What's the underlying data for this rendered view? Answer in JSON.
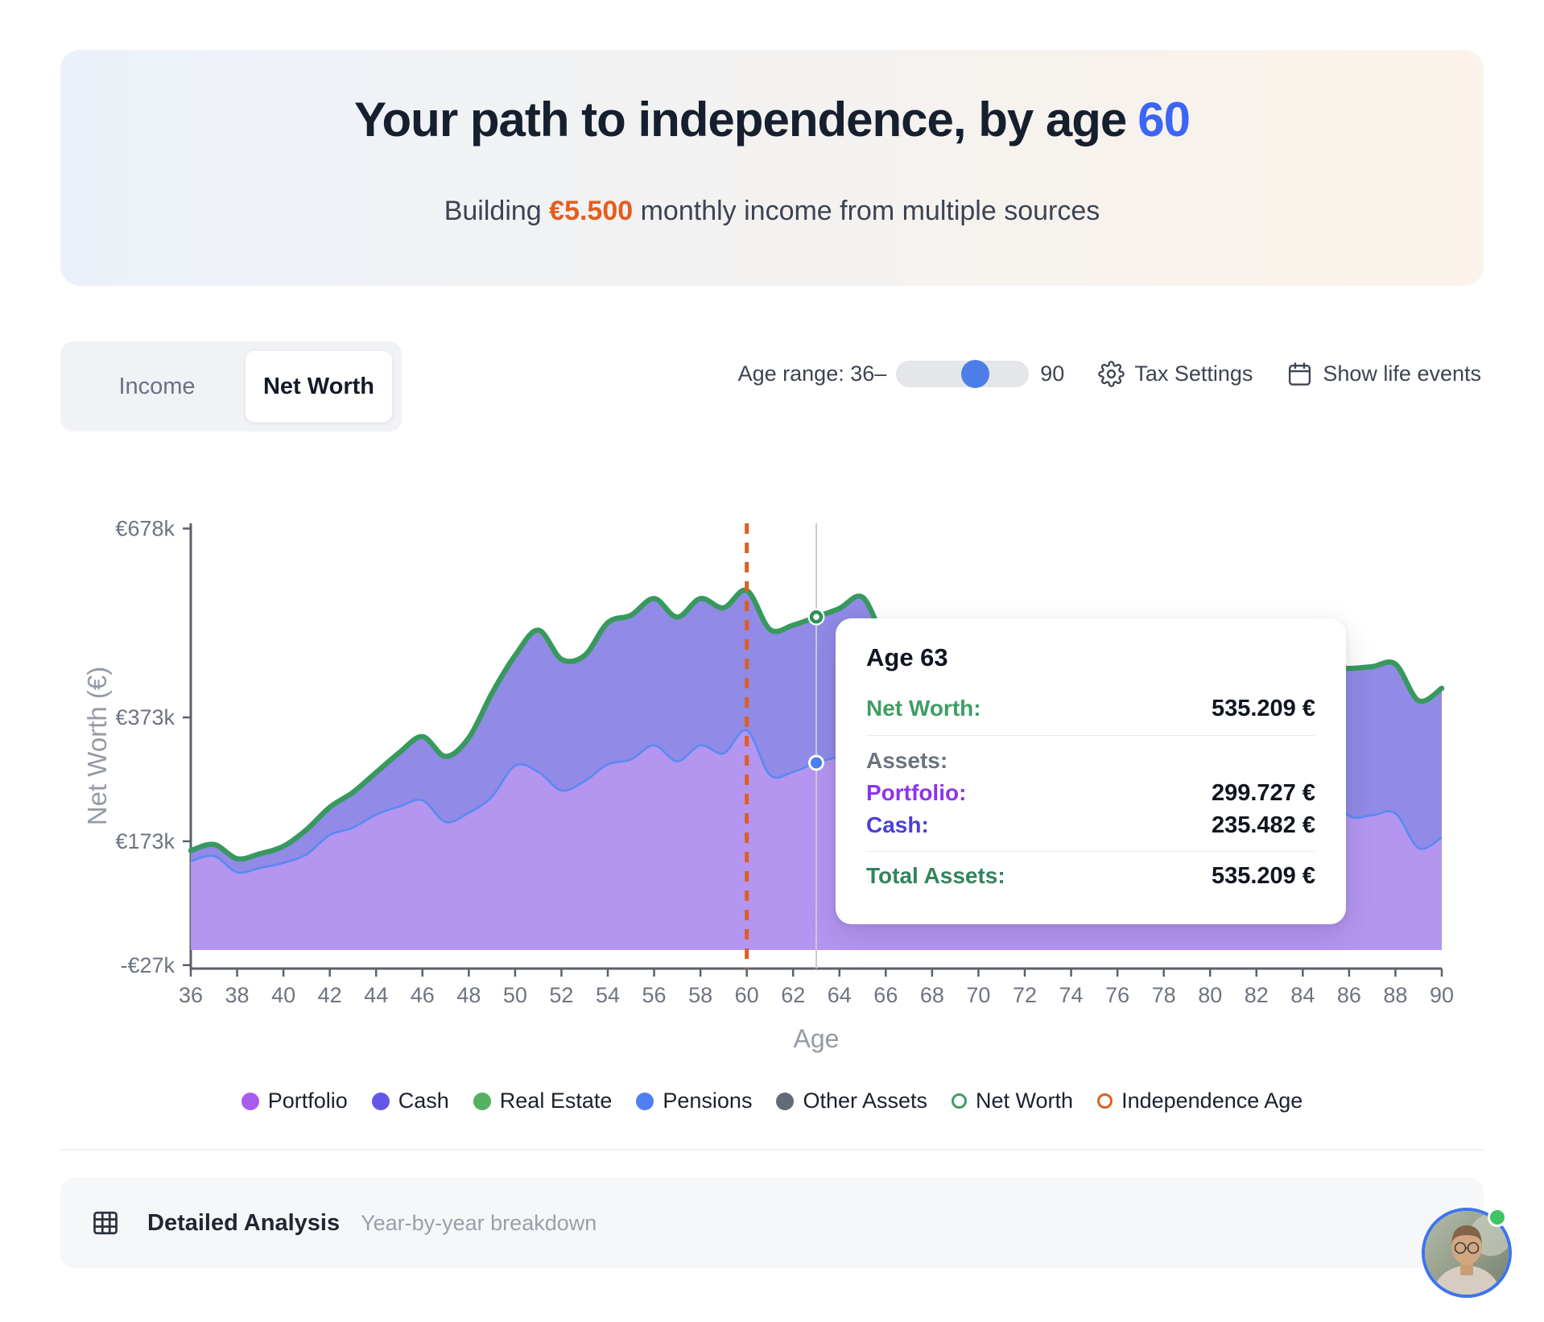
{
  "header": {
    "title_prefix": "Your path to independence, by age",
    "title_age": "60",
    "subtitle_prefix": "Building",
    "subtitle_amount": "€5.500",
    "subtitle_suffix": "monthly income from multiple sources"
  },
  "toolbar": {
    "tabs": [
      {
        "label": "Income",
        "active": false
      },
      {
        "label": "Net Worth",
        "active": true
      }
    ],
    "age_range_label": "Age range: 36–",
    "age_range_end": "90",
    "tax_settings_label": "Tax Settings",
    "life_events_label": "Show life events"
  },
  "chart_data": {
    "type": "area",
    "ylabel": "Net Worth (€)",
    "xlabel": "Age",
    "y_ticks": [
      {
        "label": "€678k",
        "value": 678
      },
      {
        "label": "€373k",
        "value": 373
      },
      {
        "label": "€173k",
        "value": 173
      },
      {
        "label": "-€27k",
        "value": -27
      }
    ],
    "x_range": [
      36,
      90
    ],
    "x_tick_step": 2,
    "ages": [
      36,
      37,
      38,
      39,
      40,
      41,
      42,
      43,
      44,
      45,
      46,
      47,
      48,
      49,
      50,
      51,
      52,
      53,
      54,
      55,
      56,
      57,
      58,
      59,
      60,
      61,
      62,
      63,
      64,
      65,
      66,
      67,
      68,
      69,
      70,
      71,
      72,
      73,
      74,
      75,
      76,
      77,
      78,
      79,
      80,
      81,
      82,
      83,
      84,
      85,
      86,
      87,
      88,
      89,
      90
    ],
    "series": [
      {
        "name": "Portfolio",
        "color": "#b495f0",
        "line_color": "#568af2",
        "values": [
          141,
          149,
          123,
          130,
          138,
          152,
          183,
          195,
          216,
          229,
          239,
          204,
          219,
          245,
          295,
          285,
          255,
          270,
          297,
          305,
          328,
          302,
          328,
          315,
          352,
          280,
          285,
          299.727,
          310,
          322,
          285,
          288,
          290,
          291,
          290,
          289,
          287,
          285,
          284,
          282,
          280,
          278,
          276,
          274,
          272,
          269,
          267,
          264,
          261,
          258,
          214,
          215,
          218,
          162,
          179
        ]
      },
      {
        "name": "Cash",
        "color": "#918ae6",
        "values": [
          17,
          19,
          22,
          23,
          27,
          40,
          45,
          57,
          68,
          87,
          103,
          106,
          121,
          167,
          178,
          229,
          212,
          203,
          229,
          233,
          237,
          233,
          237,
          235,
          226,
          235,
          237,
          235.482,
          239,
          245,
          215,
          217,
          220,
          221,
          220,
          219,
          218,
          217,
          216,
          215,
          214,
          212,
          210,
          208,
          206,
          205,
          203,
          201,
          199,
          197,
          238,
          240,
          241,
          238,
          241
        ]
      }
    ],
    "net_worth_line_color": "#38995f",
    "independence_age": 60,
    "hover_age": 63,
    "hover_net_worth": 535.209,
    "hover_portfolio": 299.727
  },
  "tooltip": {
    "title": "Age 63",
    "net_worth_label": "Net Worth:",
    "net_worth_value": "535.209 €",
    "assets_label": "Assets:",
    "portfolio_label": "Portfolio:",
    "portfolio_value": "299.727 €",
    "cash_label": "Cash:",
    "cash_value": "235.482 €",
    "total_label": "Total Assets:",
    "total_value": "535.209 €"
  },
  "legend": {
    "items": [
      {
        "label": "Portfolio",
        "color": "#a85cf2",
        "type": "dot"
      },
      {
        "label": "Cash",
        "color": "#6456e8",
        "type": "dot"
      },
      {
        "label": "Real Estate",
        "color": "#55b05f",
        "type": "dot"
      },
      {
        "label": "Pensions",
        "color": "#4f80f2",
        "type": "dot"
      },
      {
        "label": "Other Assets",
        "color": "#636b77",
        "type": "dot"
      },
      {
        "label": "Net Worth",
        "color": "#3f9e63",
        "type": "ring"
      },
      {
        "label": "Independence Age",
        "color": "#e0601f",
        "type": "ring"
      }
    ]
  },
  "footer": {
    "title": "Detailed Analysis",
    "subtitle": "Year-by-year breakdown"
  }
}
